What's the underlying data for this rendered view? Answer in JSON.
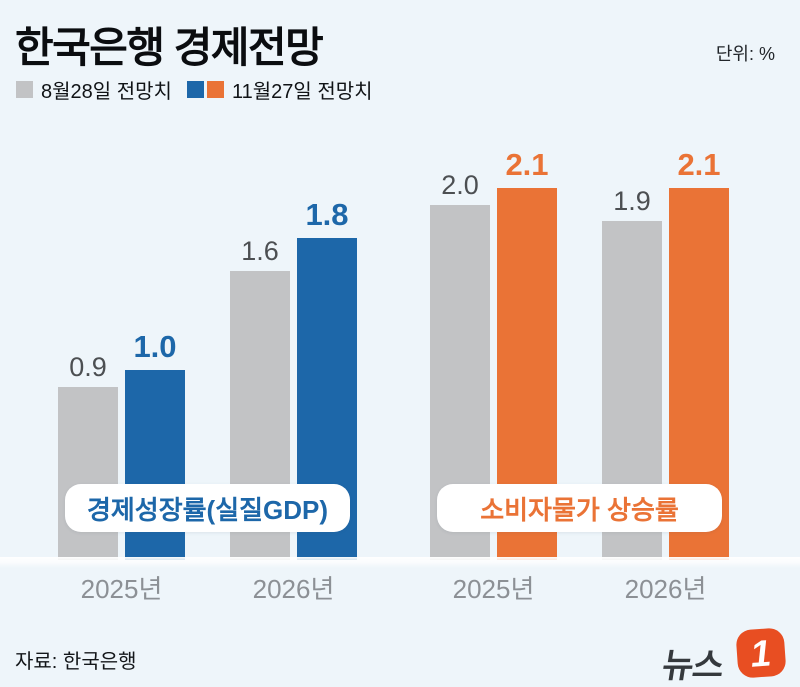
{
  "header": {
    "title": "한국은행 경제전망",
    "unit_label": "단위: %"
  },
  "legend": {
    "items": [
      {
        "label": "8월28일 전망치",
        "colors": [
          "#c2c3c5"
        ]
      },
      {
        "label": "11월27일 전망치",
        "colors": [
          "#1d67a9",
          "#ea7336"
        ]
      }
    ]
  },
  "chart_data": {
    "type": "bar",
    "title": "한국은행 경제전망",
    "unit": "%",
    "categories": [
      "2025년",
      "2026년"
    ],
    "legend_position": "top-left",
    "grid": false,
    "ylim": [
      0,
      2.4
    ],
    "groups": [
      {
        "name": "경제성장률(실질GDP)",
        "accent": "#1d67a9",
        "series": [
          {
            "name": "8월28일 전망치",
            "color": "#c2c3c5",
            "values": [
              0.9,
              1.6
            ]
          },
          {
            "name": "11월27일 전망치",
            "color": "#1d67a9",
            "values": [
              1.0,
              1.8
            ]
          }
        ]
      },
      {
        "name": "소비자물가 상승률",
        "accent": "#ea7336",
        "series": [
          {
            "name": "8월28일 전망치",
            "color": "#c2c3c5",
            "values": [
              2.0,
              1.9
            ]
          },
          {
            "name": "11월27일 전망치",
            "color": "#ea7336",
            "values": [
              2.1,
              2.1
            ]
          }
        ]
      }
    ]
  },
  "footer": {
    "source": "자료: 한국은행",
    "logo_text": "뉴스",
    "logo_badge": "1",
    "logo_badge_color": "#e84e22"
  },
  "colors": {
    "background": "#eef5fa",
    "gray_bar": "#c2c3c5",
    "blue_bar": "#1d67a9",
    "orange_bar": "#ea7336",
    "value_text": "#4c4f52",
    "axis_text": "#8c9095"
  }
}
